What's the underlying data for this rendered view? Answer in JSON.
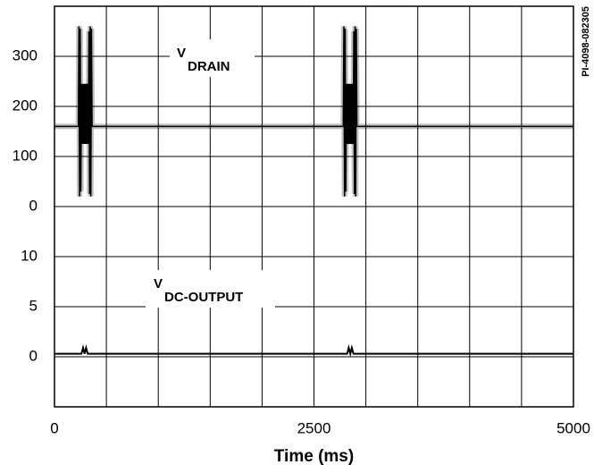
{
  "chart_data": [
    {
      "type": "line",
      "annotation": "V",
      "annotation_sub": "DRAIN",
      "note": "PI-4098-082305",
      "x": [
        0,
        230,
        236,
        242,
        248,
        254,
        260,
        266,
        272,
        278,
        284,
        290,
        296,
        302,
        308,
        314,
        320,
        326,
        332,
        338,
        344,
        350,
        356,
        362,
        2782,
        2788,
        2794,
        2800,
        2806,
        2812,
        2818,
        2824,
        2830,
        2836,
        2842,
        2848,
        2854,
        2860,
        2866,
        2872,
        2878,
        2884,
        2890,
        2896,
        2902,
        2908,
        2914,
        5000
      ],
      "series": [
        {
          "color": "#000000",
          "values": [
            160,
            160,
            360,
            20,
            355,
            30,
            245,
            125,
            245,
            125,
            245,
            125,
            245,
            125,
            245,
            125,
            245,
            125,
            350,
            25,
            360,
            20,
            355,
            160,
            160,
            360,
            20,
            355,
            30,
            245,
            125,
            245,
            125,
            245,
            125,
            245,
            125,
            245,
            125,
            245,
            125,
            350,
            25,
            360,
            20,
            355,
            160,
            160
          ]
        }
      ],
      "xlim": [
        0,
        5000
      ],
      "ylim": [
        0,
        400
      ],
      "yticks": [
        0,
        100,
        200,
        300
      ],
      "grid": true
    },
    {
      "type": "line",
      "annotation": "V",
      "annotation_sub": "DC-OUTPUT",
      "xlabel": "Time (ms)",
      "x": [
        0,
        260,
        275,
        290,
        305,
        320,
        335,
        2820,
        2835,
        2850,
        2865,
        2880,
        2895,
        5000
      ],
      "series": [
        {
          "color": "#000000",
          "values": [
            0.3,
            0.3,
            0.9,
            0.3,
            0.9,
            0.3,
            0.3,
            0.3,
            0.9,
            0.3,
            0.9,
            0.3,
            0.3,
            0.3
          ]
        }
      ],
      "xlim": [
        0,
        5000
      ],
      "ylim": [
        -5,
        15
      ],
      "yticks": [
        0,
        5,
        10
      ],
      "xticks": [
        0,
        2500,
        5000
      ],
      "xgrid": [
        500,
        1000,
        1500,
        2000,
        3000,
        3500,
        4000,
        4500
      ],
      "grid": true
    }
  ]
}
